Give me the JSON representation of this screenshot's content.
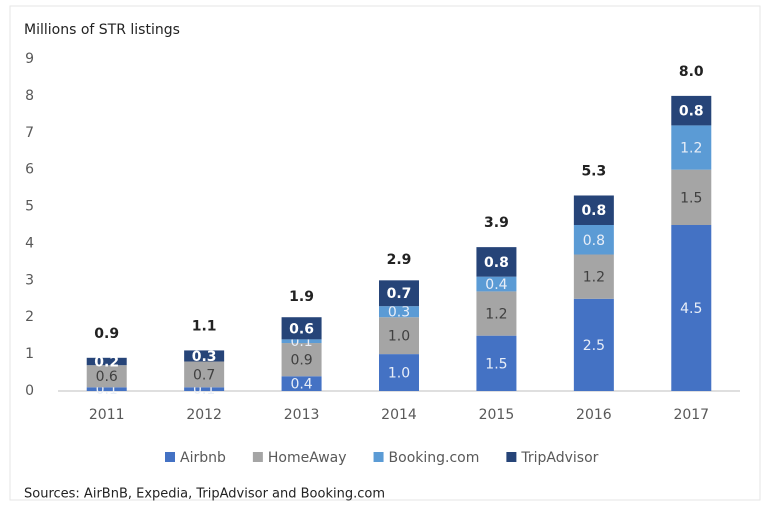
{
  "chart_data": {
    "type": "stacked_bar",
    "title": "Millions of STR listings",
    "source": "Sources: AirBnB, Expedia, TripAdvisor and Booking.com",
    "categories": [
      "2011",
      "2012",
      "2013",
      "2014",
      "2015",
      "2016",
      "2017"
    ],
    "series": [
      {
        "name": "Airbnb",
        "color": "#4472c4",
        "values": [
          0.1,
          0.1,
          0.4,
          1.0,
          1.5,
          2.5,
          4.5
        ],
        "value_labels": [
          "0.1",
          "0.1",
          "0.4",
          "1.0",
          "1.5",
          "2.5",
          "4.5"
        ]
      },
      {
        "name": "HomeAway",
        "color": "#a5a5a5",
        "values": [
          0.6,
          0.7,
          0.9,
          1.0,
          1.2,
          1.2,
          1.5
        ],
        "value_labels": [
          "0.6",
          "0.7",
          "0.9",
          "1.0",
          "1.2",
          "1.2",
          "1.5"
        ]
      },
      {
        "name": "Booking.com",
        "color": "#5b9bd5",
        "values": [
          0.0,
          0.0,
          0.1,
          0.3,
          0.4,
          0.8,
          1.2
        ],
        "value_labels": [
          null,
          null,
          "0.1",
          "0.3",
          "0.4",
          "0.8",
          "1.2"
        ]
      },
      {
        "name": "TripAdvisor",
        "color": "#264478",
        "values": [
          0.2,
          0.3,
          0.6,
          0.7,
          0.8,
          0.8,
          0.8
        ],
        "value_labels": [
          "0.2",
          "0.3",
          "0.6",
          "0.7",
          "0.8",
          "0.8",
          "0.8"
        ]
      }
    ],
    "totals": [
      0.9,
      1.1,
      1.9,
      2.9,
      3.9,
      5.3,
      8.0
    ],
    "total_labels": [
      "0.9",
      "1.1",
      "1.9",
      "2.9",
      "3.9",
      "5.3",
      "8.0"
    ],
    "ylim": [
      0,
      9
    ],
    "yticks": [
      0,
      1,
      2,
      3,
      4,
      5,
      6,
      7,
      8,
      9
    ],
    "grid": false,
    "legend": "bottom"
  }
}
